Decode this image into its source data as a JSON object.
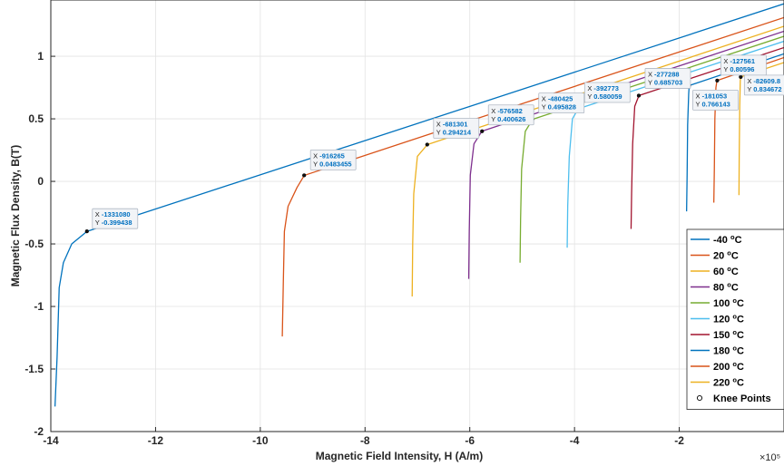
{
  "chart_data": {
    "type": "line",
    "xlabel": "Magnetic Field Intensity, H (A/m)",
    "ylabel": "Magnetic Flux Density, B(T)",
    "x_scale_label": "×10⁵",
    "x_multiplier": 100000,
    "xlim": [
      -14,
      0
    ],
    "ylim": [
      -2,
      1.45
    ],
    "xticks": [
      -14,
      -12,
      -10,
      -8,
      -6,
      -4,
      -2
    ],
    "yticks": [
      -2,
      -1.5,
      -1,
      -0.5,
      0,
      0.5,
      1
    ],
    "xtick_labels": [
      "-14",
      "-12",
      "-10",
      "-8",
      "-6",
      "-4",
      "-2"
    ],
    "ytick_labels": [
      "-2",
      "-1.5",
      "-1",
      "-0.5",
      "0",
      "0.5",
      "1"
    ],
    "grid": true,
    "legend_position": "bottom-right",
    "series": [
      {
        "name": "-40 °C",
        "color": "#0072bd",
        "points": [
          [
            -13.92,
            -1.8
          ],
          [
            -13.88,
            -1.4
          ],
          [
            -13.84,
            -0.85
          ],
          [
            -13.76,
            -0.65
          ],
          [
            -13.6,
            -0.5
          ],
          [
            -13.31,
            -0.4
          ],
          [
            0.0,
            1.42
          ]
        ]
      },
      {
        "name": "20 °C",
        "color": "#d95319",
        "points": [
          [
            -9.58,
            -1.24
          ],
          [
            -9.56,
            -0.8
          ],
          [
            -9.54,
            -0.4
          ],
          [
            -9.47,
            -0.2
          ],
          [
            -9.3,
            -0.05
          ],
          [
            -9.16,
            0.048
          ],
          [
            0.0,
            1.31
          ]
        ]
      },
      {
        "name": "60 °C",
        "color": "#edb120",
        "points": [
          [
            -7.1,
            -0.92
          ],
          [
            -7.09,
            -0.5
          ],
          [
            -7.07,
            -0.1
          ],
          [
            -7.0,
            0.2
          ],
          [
            -6.81,
            0.294
          ],
          [
            0.0,
            1.24
          ]
        ]
      },
      {
        "name": "80 °C",
        "color": "#7e2f8e",
        "points": [
          [
            -6.02,
            -0.78
          ],
          [
            -6.01,
            -0.4
          ],
          [
            -5.99,
            0.05
          ],
          [
            -5.92,
            0.3
          ],
          [
            -5.77,
            0.401
          ],
          [
            0.0,
            1.2
          ]
        ]
      },
      {
        "name": "100 °C",
        "color": "#77ac30",
        "points": [
          [
            -5.04,
            -0.65
          ],
          [
            -5.03,
            -0.3
          ],
          [
            -5.01,
            0.1
          ],
          [
            -4.94,
            0.4
          ],
          [
            -4.8,
            0.496
          ],
          [
            0.0,
            1.16
          ]
        ]
      },
      {
        "name": "120 °C",
        "color": "#4dbeee",
        "points": [
          [
            -4.14,
            -0.53
          ],
          [
            -4.13,
            -0.2
          ],
          [
            -4.1,
            0.2
          ],
          [
            -4.04,
            0.5
          ],
          [
            -3.93,
            0.58
          ],
          [
            0.0,
            1.12
          ]
        ]
      },
      {
        "name": "150 °C",
        "color": "#a2142f",
        "points": [
          [
            -2.92,
            -0.38
          ],
          [
            -2.91,
            -0.1
          ],
          [
            -2.89,
            0.3
          ],
          [
            -2.85,
            0.6
          ],
          [
            -2.77,
            0.686
          ],
          [
            0.0,
            1.07
          ]
        ]
      },
      {
        "name": "180 °C",
        "color": "#0072bd",
        "points": [
          [
            -1.86,
            -0.24
          ],
          [
            -1.85,
            0.05
          ],
          [
            -1.84,
            0.45
          ],
          [
            -1.82,
            0.7
          ],
          [
            -1.81,
            0.766
          ],
          [
            0.0,
            1.02
          ]
        ]
      },
      {
        "name": "200 °C",
        "color": "#d95319",
        "points": [
          [
            -1.34,
            -0.17
          ],
          [
            -1.33,
            0.1
          ],
          [
            -1.32,
            0.5
          ],
          [
            -1.3,
            0.75
          ],
          [
            -1.28,
            0.806
          ],
          [
            0.0,
            0.99
          ]
        ]
      },
      {
        "name": "220 °C",
        "color": "#edb120",
        "points": [
          [
            -0.86,
            -0.11
          ],
          [
            -0.855,
            0.2
          ],
          [
            -0.845,
            0.6
          ],
          [
            -0.835,
            0.8
          ],
          [
            -0.83,
            0.835
          ],
          [
            0.0,
            0.95
          ]
        ]
      }
    ],
    "knee_points_legend": "Knee Points",
    "knee_points": [
      {
        "x": -13.3108,
        "y": -0.399438,
        "x_label": "-1331080",
        "y_label": "-0.399438"
      },
      {
        "x": -9.16265,
        "y": 0.0483455,
        "x_label": "-916265",
        "y_label": "0.0483455"
      },
      {
        "x": -6.81301,
        "y": 0.294214,
        "x_label": "-681301",
        "y_label": "0.294214"
      },
      {
        "x": -5.76582,
        "y": 0.400626,
        "x_label": "-576582",
        "y_label": "0.400626"
      },
      {
        "x": -4.80425,
        "y": 0.495828,
        "x_label": "-480425",
        "y_label": "0.495828"
      },
      {
        "x": -3.92773,
        "y": 0.580059,
        "x_label": "-392773",
        "y_label": "0.580059"
      },
      {
        "x": -2.77288,
        "y": 0.685703,
        "x_label": "-277288",
        "y_label": "0.685703"
      },
      {
        "x": -1.81053,
        "y": 0.766143,
        "x_label": "-181053",
        "y_label": "0.766143"
      },
      {
        "x": -1.27561,
        "y": 0.80596,
        "x_label": "-127561",
        "y_label": "0.80596"
      },
      {
        "x": -0.826098,
        "y": 0.834672,
        "x_label": "-82609.8",
        "y_label": "0.834672"
      }
    ]
  }
}
